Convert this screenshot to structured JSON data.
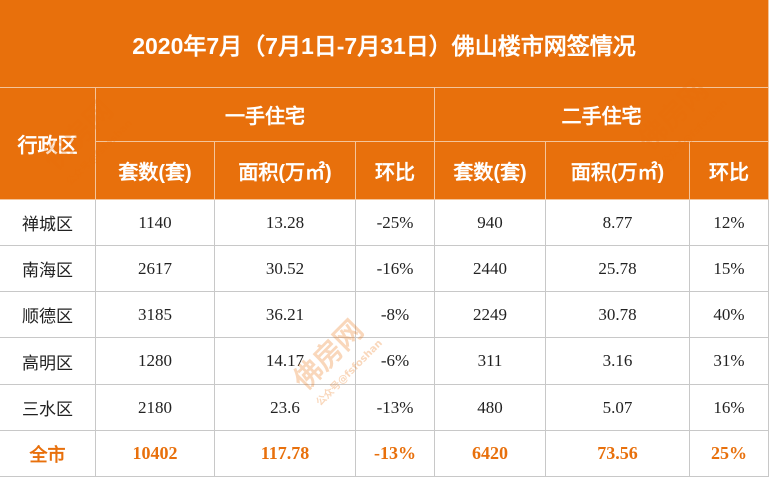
{
  "title": "2020年7月（7月1日-7月31日）佛山楼市网签情况",
  "header": {
    "region": "行政区",
    "groups": [
      "一手住宅",
      "二手住宅"
    ],
    "columns": [
      "套数(套)",
      "面积(万㎡)",
      "环比",
      "套数(套)",
      "面积(万㎡)",
      "环比"
    ]
  },
  "rows": [
    [
      "禅城区",
      "1140",
      "13.28",
      "-25%",
      "940",
      "8.77",
      "12%"
    ],
    [
      "南海区",
      "2617",
      "30.52",
      "-16%",
      "2440",
      "25.78",
      "15%"
    ],
    [
      "顺德区",
      "3185",
      "36.21",
      "-8%",
      "2249",
      "30.78",
      "40%"
    ],
    [
      "高明区",
      "1280",
      "14.17",
      "-6%",
      "311",
      "3.16",
      "31%"
    ],
    [
      "三水区",
      "2180",
      "23.6",
      "-13%",
      "480",
      "5.07",
      "16%"
    ],
    [
      "全市",
      "10402",
      "117.78",
      "-13%",
      "6420",
      "73.56",
      "25%"
    ]
  ],
  "watermark": {
    "brand": "佛房网",
    "account": "公众号@fsfoshan"
  }
}
